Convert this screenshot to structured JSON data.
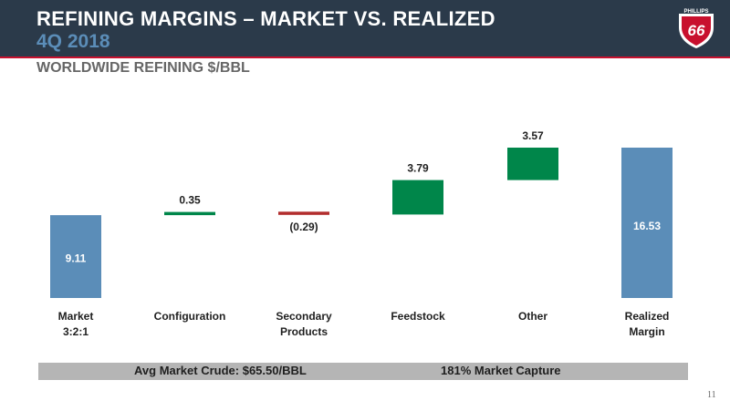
{
  "header": {
    "title": "REFINING MARGINS – MARKET VS. REALIZED",
    "subtitle": "4Q 2018"
  },
  "logo": {
    "text_top": "PHILLIPS",
    "text_main": "66"
  },
  "section_title": "WORLDWIDE REFINING $/BBL",
  "colors": {
    "header_bg": "#2b3a4a",
    "accent_red": "#c8102e",
    "total_bar": "#5b8db8",
    "increase": "#00864a",
    "decrease": "#b22d2d"
  },
  "chart_data": {
    "type": "bar",
    "subtype": "waterfall",
    "categories": [
      [
        "Market",
        "3:2:1"
      ],
      [
        "Configuration"
      ],
      [
        "Secondary",
        "Products"
      ],
      [
        "Feedstock"
      ],
      [
        "Other"
      ],
      [
        "Realized",
        "Margin"
      ]
    ],
    "values": [
      9.11,
      0.35,
      -0.29,
      3.79,
      3.57,
      16.53
    ],
    "labels": [
      "9.11",
      "0.35",
      "(0.29)",
      "3.79",
      "3.57",
      "16.53"
    ],
    "kinds": [
      "total",
      "delta",
      "delta",
      "delta",
      "delta",
      "total"
    ]
  },
  "footer": {
    "left": "Avg Market Crude: $65.50/BBL",
    "right": "181% Market Capture"
  },
  "page_number": "11"
}
